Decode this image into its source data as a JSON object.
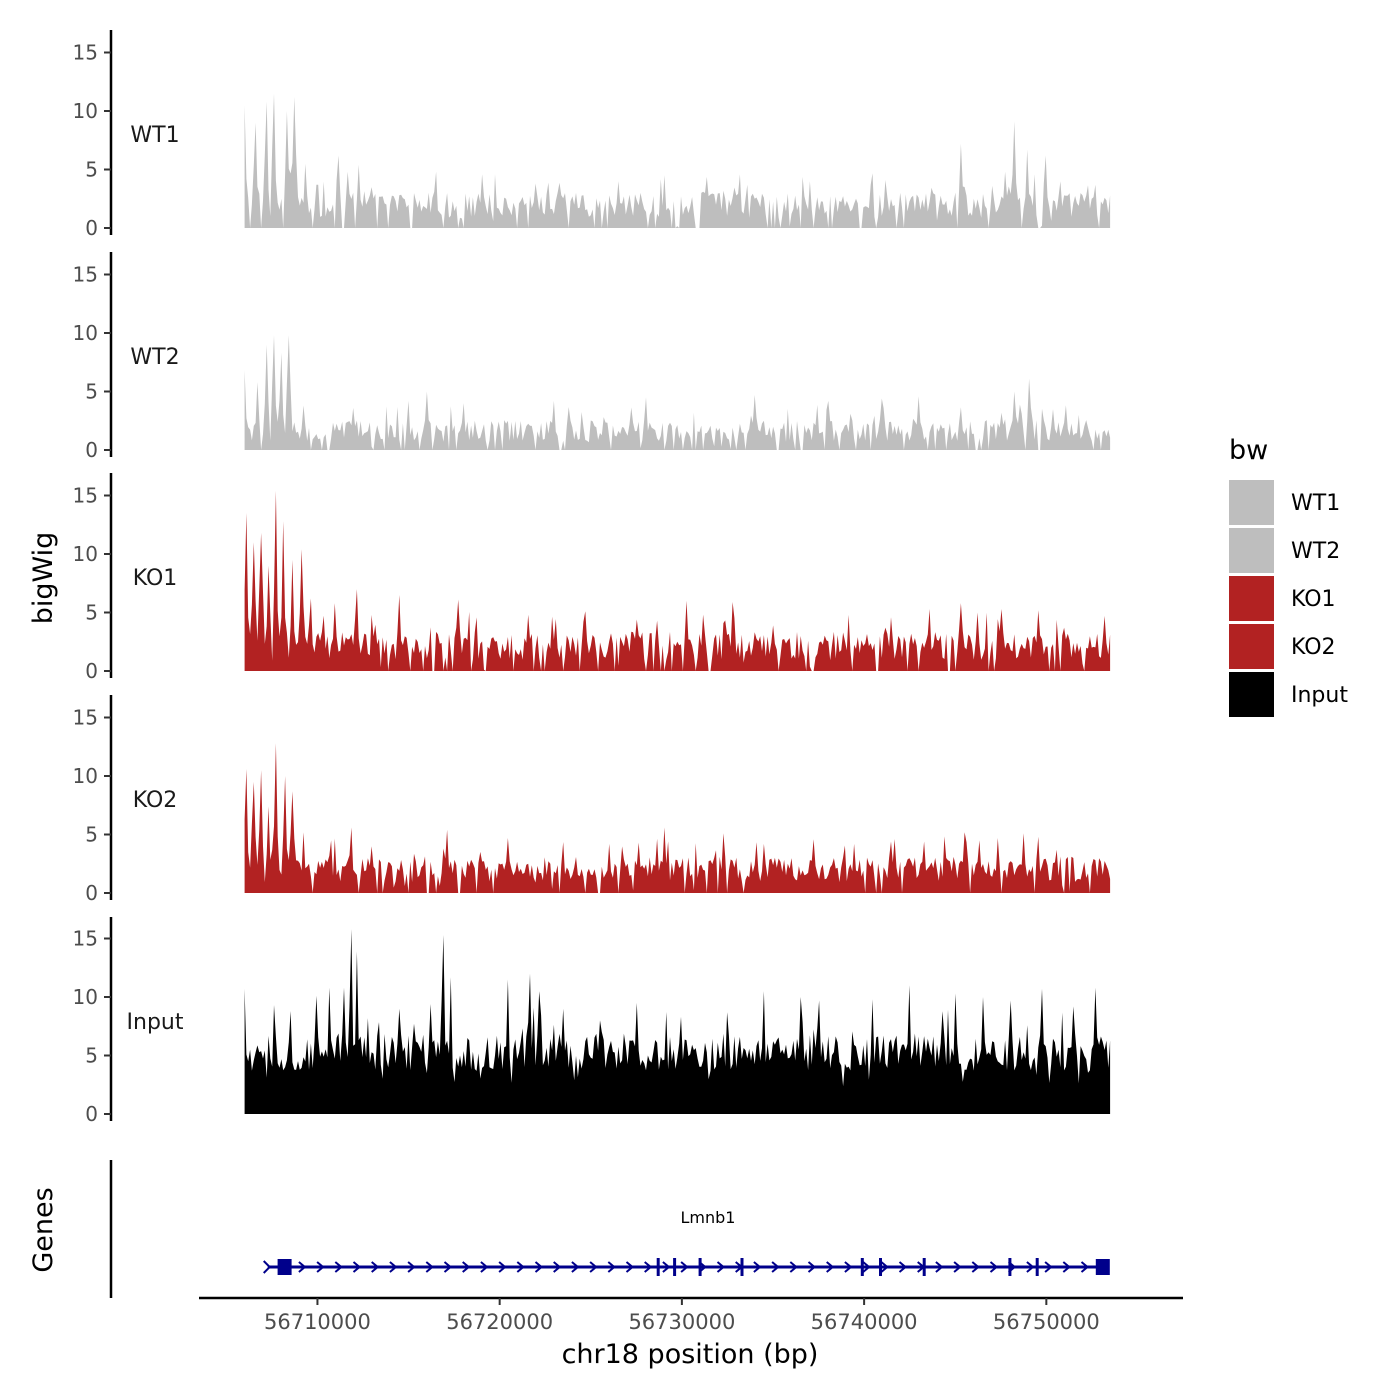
{
  "chart_data": {
    "type": "area",
    "title": "",
    "ylabel": "bigWig",
    "xlabel": "chr18 position (bp)",
    "chrom": "chr18",
    "xlim": [
      56703500,
      56757500
    ],
    "data_range": [
      56706000,
      56753500
    ],
    "ylim": [
      0,
      16
    ],
    "yticks": [
      0,
      5,
      10,
      15
    ],
    "xticks": [
      56710000,
      56720000,
      56730000,
      56740000,
      56750000
    ],
    "xtick_labels": [
      "56710000",
      "56720000",
      "56730000",
      "56740000",
      "56750000"
    ],
    "legend": {
      "title": "bw",
      "position": "right",
      "entries": [
        {
          "label": "WT1",
          "color": "#bebebe"
        },
        {
          "label": "WT2",
          "color": "#bebebe"
        },
        {
          "label": "KO1",
          "color": "#b22222"
        },
        {
          "label": "KO2",
          "color": "#b22222"
        },
        {
          "label": "Input",
          "color": "#000000"
        }
      ]
    },
    "series": [
      {
        "name": "WT1",
        "color": "#bebebe",
        "baseline_mean": 1.6,
        "baseline_var": 2.2,
        "gap_prob": 0.12,
        "peaks": [
          [
            56706000,
            10.5
          ],
          [
            56706600,
            9.0
          ],
          [
            56707200,
            10.8
          ],
          [
            56707600,
            11.5
          ],
          [
            56708300,
            10.0
          ],
          [
            56708700,
            11.2
          ],
          [
            56709300,
            5.5
          ],
          [
            56711200,
            6.2
          ],
          [
            56711700,
            4.8
          ],
          [
            56712300,
            5.4
          ],
          [
            56713000,
            3.5
          ],
          [
            56716500,
            4.8
          ],
          [
            56719000,
            4.6
          ],
          [
            56722000,
            3.8
          ],
          [
            56726500,
            4.0
          ],
          [
            56729000,
            4.5
          ],
          [
            56734000,
            2.5
          ],
          [
            56737000,
            4.0
          ],
          [
            56741200,
            4.1
          ],
          [
            56742000,
            3.0
          ],
          [
            56745300,
            7.2
          ],
          [
            56747000,
            3.6
          ],
          [
            56747700,
            4.8
          ],
          [
            56748200,
            9.1
          ],
          [
            56749000,
            6.7
          ],
          [
            56750000,
            6.2
          ],
          [
            56750800,
            4.0
          ],
          [
            56752500,
            2.5
          ]
        ]
      },
      {
        "name": "WT2",
        "color": "#bebebe",
        "baseline_mean": 1.4,
        "baseline_var": 1.8,
        "gap_prob": 0.1,
        "peaks": [
          [
            56706000,
            6.8
          ],
          [
            56706700,
            5.8
          ],
          [
            56707200,
            9.0
          ],
          [
            56707600,
            9.8
          ],
          [
            56708000,
            8.3
          ],
          [
            56708400,
            9.8
          ],
          [
            56709200,
            3.8
          ],
          [
            56712000,
            3.6
          ],
          [
            56715000,
            4.2
          ],
          [
            56716000,
            5.0
          ],
          [
            56718000,
            4.0
          ],
          [
            56723000,
            4.2
          ],
          [
            56728000,
            4.5
          ],
          [
            56734000,
            4.7
          ],
          [
            56738000,
            4.2
          ],
          [
            56741000,
            4.4
          ],
          [
            56743000,
            4.6
          ],
          [
            56747500,
            3.2
          ],
          [
            56748200,
            5.0
          ],
          [
            56749100,
            6.1
          ],
          [
            56750400,
            3.5
          ],
          [
            56751800,
            3.0
          ]
        ]
      },
      {
        "name": "KO1",
        "color": "#b22222",
        "baseline_mean": 1.8,
        "baseline_var": 2.4,
        "gap_prob": 0.08,
        "peaks": [
          [
            56706100,
            13.5
          ],
          [
            56706500,
            11.0
          ],
          [
            56706900,
            11.8
          ],
          [
            56707300,
            9.0
          ],
          [
            56707700,
            15.4
          ],
          [
            56708100,
            12.8
          ],
          [
            56708600,
            9.5
          ],
          [
            56709100,
            10.4
          ],
          [
            56709600,
            6.2
          ],
          [
            56711000,
            5.8
          ],
          [
            56712200,
            7.0
          ],
          [
            56714500,
            6.5
          ],
          [
            56717700,
            6.1
          ],
          [
            56721600,
            4.8
          ],
          [
            56724600,
            4.2
          ],
          [
            56727500,
            4.4
          ],
          [
            56730300,
            6.0
          ],
          [
            56732800,
            5.9
          ],
          [
            56735000,
            3.9
          ],
          [
            56741500,
            4.6
          ],
          [
            56743600,
            5.3
          ],
          [
            56745300,
            5.8
          ],
          [
            56746200,
            5.0
          ],
          [
            56747500,
            5.3
          ],
          [
            56749600,
            5.2
          ],
          [
            56751000,
            3.7
          ],
          [
            56752500,
            2.0
          ]
        ]
      },
      {
        "name": "KO2",
        "color": "#b22222",
        "baseline_mean": 1.7,
        "baseline_var": 2.2,
        "gap_prob": 0.08,
        "peaks": [
          [
            56706100,
            10.6
          ],
          [
            56706500,
            9.5
          ],
          [
            56706900,
            10.5
          ],
          [
            56707300,
            7.4
          ],
          [
            56707700,
            12.8
          ],
          [
            56708200,
            10.0
          ],
          [
            56708600,
            8.7
          ],
          [
            56709200,
            5.2
          ],
          [
            56710800,
            4.5
          ],
          [
            56711900,
            5.6
          ],
          [
            56713000,
            4.0
          ],
          [
            56717100,
            5.4
          ],
          [
            56720500,
            4.7
          ],
          [
            56726000,
            4.2
          ],
          [
            56729000,
            5.6
          ],
          [
            56732300,
            5.1
          ],
          [
            56734500,
            4.2
          ],
          [
            56737200,
            4.6
          ],
          [
            56739500,
            4.2
          ],
          [
            56741500,
            4.4
          ],
          [
            56743300,
            4.4
          ],
          [
            56745500,
            5.2
          ],
          [
            56746300,
            4.5
          ],
          [
            56747300,
            4.7
          ],
          [
            56748800,
            5.1
          ],
          [
            56749600,
            4.8
          ],
          [
            56750600,
            3.7
          ],
          [
            56752700,
            2.8
          ]
        ]
      },
      {
        "name": "Input",
        "color": "#000000",
        "baseline_mean": 4.8,
        "baseline_var": 3.2,
        "gap_prob": 0.0,
        "peaks": [
          [
            56706000,
            10.7
          ],
          [
            56708500,
            8.8
          ],
          [
            56709900,
            10.1
          ],
          [
            56710600,
            10.8
          ],
          [
            56711500,
            10.8
          ],
          [
            56711900,
            15.8
          ],
          [
            56712200,
            13.9
          ],
          [
            56712800,
            8.2
          ],
          [
            56714500,
            9.0
          ],
          [
            56716200,
            9.4
          ],
          [
            56716900,
            15.3
          ],
          [
            56717300,
            11.7
          ],
          [
            56718200,
            6.5
          ],
          [
            56720500,
            11.5
          ],
          [
            56721700,
            12.0
          ],
          [
            56722200,
            10.5
          ],
          [
            56723500,
            9.0
          ],
          [
            56725500,
            8.0
          ],
          [
            56727500,
            9.5
          ],
          [
            56730000,
            8.3
          ],
          [
            56732500,
            8.7
          ],
          [
            56734500,
            10.5
          ],
          [
            56736500,
            10.0
          ],
          [
            56737500,
            9.7
          ],
          [
            56740500,
            9.8
          ],
          [
            56742500,
            11.0
          ],
          [
            56745000,
            10.3
          ],
          [
            56746500,
            10.0
          ],
          [
            56748000,
            9.7
          ],
          [
            56749800,
            10.7
          ],
          [
            56751500,
            9.2
          ],
          [
            56752700,
            10.8
          ]
        ]
      }
    ]
  },
  "gene_track": {
    "ylabel": "Genes",
    "gene_name": "Lmnb1",
    "gene_start": 56707600,
    "gene_end": 56753300,
    "strand": "+",
    "color": "#00008b",
    "exons": [
      56708200,
      56728700,
      56729600,
      56731000,
      56733300,
      56739900,
      56740900,
      56743300,
      56748000,
      56749500,
      56753100
    ]
  }
}
